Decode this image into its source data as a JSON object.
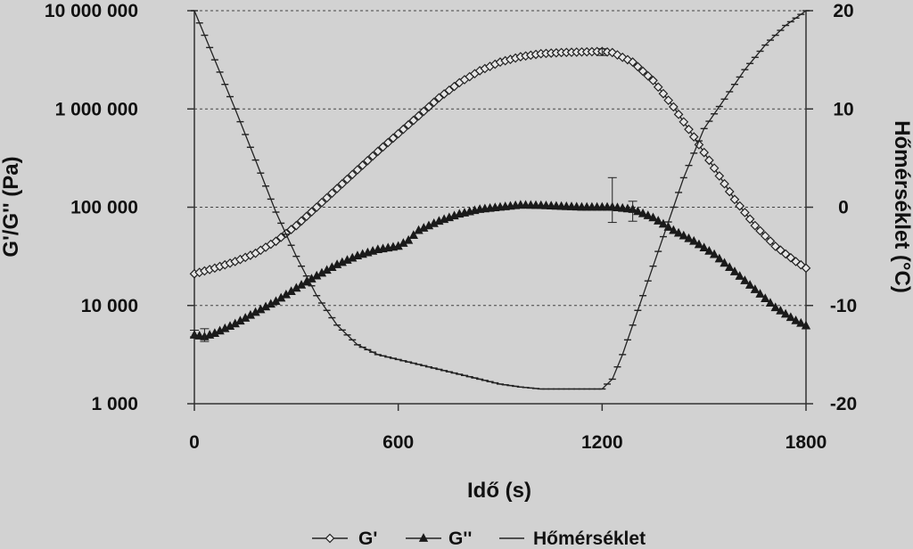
{
  "chart_data": {
    "type": "line",
    "xlabel": "Idő (s)",
    "ylabel_left": "G'/G'' (Pa)",
    "ylabel_right": "Hőmérséklet (°C)",
    "x_ticks": [
      {
        "value": 0,
        "label": "0"
      },
      {
        "value": 600,
        "label": "600"
      },
      {
        "value": 1200,
        "label": "1200"
      },
      {
        "value": 1800,
        "label": "1800"
      }
    ],
    "y_left_ticks": [
      {
        "value": 1000,
        "label": "1 000"
      },
      {
        "value": 10000,
        "label": "10 000"
      },
      {
        "value": 100000,
        "label": "100 000"
      },
      {
        "value": 1000000,
        "label": "1 000 000"
      },
      {
        "value": 10000000,
        "label": "10 000 000"
      }
    ],
    "y_right_ticks": [
      {
        "value": -20,
        "label": "-20"
      },
      {
        "value": -10,
        "label": "-10"
      },
      {
        "value": 0,
        "label": "0"
      },
      {
        "value": 10,
        "label": "10"
      },
      {
        "value": 20,
        "label": "20"
      }
    ],
    "xlim": [
      0,
      1800
    ],
    "ylim_left": [
      1000,
      10000000
    ],
    "ylim_right": [
      -20,
      20
    ],
    "y_left_scale": "log",
    "grid": "horizontal-dashed",
    "legend_position": "bottom",
    "series": [
      {
        "name": "G'",
        "axis": "left",
        "marker": "open-diamond",
        "x": [
          0,
          60,
          120,
          180,
          240,
          300,
          360,
          420,
          480,
          540,
          600,
          660,
          720,
          780,
          840,
          900,
          960,
          1020,
          1080,
          1140,
          1200,
          1230,
          1290,
          1350,
          1410,
          1470,
          1530,
          1590,
          1650,
          1710,
          1770,
          1800
        ],
        "y": [
          21000,
          24000,
          28000,
          34000,
          45000,
          65000,
          100000,
          155000,
          240000,
          370000,
          560000,
          850000,
          1300000,
          1850000,
          2450000,
          3000000,
          3400000,
          3650000,
          3750000,
          3800000,
          3850000,
          3750000,
          3000000,
          1950000,
          1050000,
          520000,
          250000,
          120000,
          65000,
          40000,
          28000,
          24000
        ]
      },
      {
        "name": "G''",
        "axis": "left",
        "marker": "filled-triangle",
        "x": [
          0,
          30,
          60,
          120,
          180,
          240,
          300,
          360,
          420,
          480,
          540,
          600,
          630,
          660,
          720,
          780,
          840,
          900,
          960,
          1020,
          1080,
          1140,
          1200,
          1230,
          1290,
          1350,
          1410,
          1470,
          1530,
          1590,
          1650,
          1710,
          1770,
          1800
        ],
        "y": [
          5000,
          4800,
          5200,
          6500,
          8500,
          11000,
          15000,
          20000,
          26000,
          32000,
          37000,
          40000,
          46000,
          58000,
          72000,
          85000,
          95000,
          100000,
          105000,
          104000,
          102000,
          100000,
          100000,
          100000,
          95000,
          78000,
          58000,
          45000,
          33000,
          22000,
          14500,
          9500,
          7000,
          6200
        ]
      },
      {
        "name": "Hőmérséklet",
        "axis": "right",
        "marker": "dash",
        "x": [
          0,
          60,
          120,
          180,
          240,
          300,
          360,
          420,
          480,
          540,
          600,
          660,
          720,
          780,
          840,
          900,
          960,
          1020,
          1080,
          1140,
          1200,
          1230,
          1260,
          1320,
          1380,
          1440,
          1500,
          1560,
          1620,
          1680,
          1740,
          1800
        ],
        "y": [
          20,
          15,
          10,
          4.8,
          -0.5,
          -5,
          -9,
          -12,
          -14,
          -15,
          -15.5,
          -16,
          -16.5,
          -17,
          -17.5,
          -18,
          -18.3,
          -18.5,
          -18.5,
          -18.5,
          -18.5,
          -17.5,
          -15,
          -9,
          -3,
          3,
          8,
          11,
          14,
          16.5,
          18.5,
          20
        ]
      }
    ]
  }
}
